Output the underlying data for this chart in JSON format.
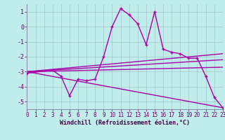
{
  "xlabel": "Windchill (Refroidissement éolien,°C)",
  "bg_color": "#c0ecec",
  "line_color": "#aa00aa",
  "grid_color": "#aacccc",
  "xlim": [
    0,
    23
  ],
  "ylim": [
    -5.5,
    1.5
  ],
  "xticks": [
    0,
    1,
    2,
    3,
    4,
    5,
    6,
    7,
    8,
    9,
    10,
    11,
    12,
    13,
    14,
    15,
    16,
    17,
    18,
    19,
    20,
    21,
    22,
    23
  ],
  "yticks": [
    -5,
    -4,
    -3,
    -2,
    -1,
    0,
    1
  ],
  "series1_x": [
    0,
    3,
    4,
    5,
    6,
    7,
    8,
    9,
    10,
    11,
    12,
    13,
    14,
    15,
    16,
    17,
    18,
    19,
    20,
    21,
    22,
    23
  ],
  "series1_y": [
    -3.1,
    -2.9,
    -3.3,
    -4.6,
    -3.5,
    -3.6,
    -3.5,
    -2.0,
    0.0,
    1.2,
    0.8,
    0.2,
    -1.2,
    1.0,
    -1.5,
    -1.7,
    -1.8,
    -2.1,
    -2.1,
    -3.3,
    -4.7,
    -5.4
  ],
  "line1_x": [
    0,
    23
  ],
  "line1_y": [
    -3.0,
    -1.8
  ],
  "line2_x": [
    0,
    23
  ],
  "line2_y": [
    -3.0,
    -2.2
  ],
  "line3_x": [
    0,
    23
  ],
  "line3_y": [
    -3.0,
    -2.7
  ],
  "line4_x": [
    0,
    23
  ],
  "line4_y": [
    -3.0,
    -5.4
  ],
  "lw": 1.0,
  "marker_size": 3.5,
  "xlabel_fontsize": 6,
  "tick_fontsize": 5.5,
  "tick_color": "#660066",
  "xlabel_color": "#440044"
}
